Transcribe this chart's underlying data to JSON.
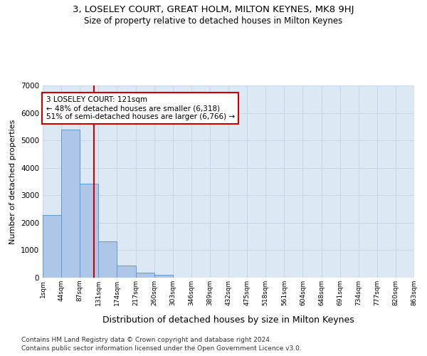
{
  "title1": "3, LOSELEY COURT, GREAT HOLM, MILTON KEYNES, MK8 9HJ",
  "title2": "Size of property relative to detached houses in Milton Keynes",
  "xlabel": "Distribution of detached houses by size in Milton Keynes",
  "ylabel": "Number of detached properties",
  "bin_labels": [
    "1sqm",
    "44sqm",
    "87sqm",
    "131sqm",
    "174sqm",
    "217sqm",
    "260sqm",
    "303sqm",
    "346sqm",
    "389sqm",
    "432sqm",
    "475sqm",
    "518sqm",
    "561sqm",
    "604sqm",
    "648sqm",
    "691sqm",
    "734sqm",
    "777sqm",
    "820sqm",
    "863sqm"
  ],
  "bar_values": [
    2280,
    5400,
    3420,
    1330,
    430,
    170,
    100,
    0,
    0,
    0,
    0,
    0,
    0,
    0,
    0,
    0,
    0,
    0,
    0,
    0
  ],
  "bar_color": "#aec6e8",
  "bar_edge_color": "#5b9bd5",
  "vline_color": "#cc0000",
  "annotation_title": "3 LOSELEY COURT: 121sqm",
  "annotation_line2": "← 48% of detached houses are smaller (6,318)",
  "annotation_line3": "51% of semi-detached houses are larger (6,766) →",
  "annotation_box_color": "#ffffff",
  "annotation_box_edge_color": "#cc0000",
  "ylim": [
    0,
    7000
  ],
  "yticks": [
    0,
    1000,
    2000,
    3000,
    4000,
    5000,
    6000,
    7000
  ],
  "grid_color": "#c8d8e8",
  "background_color": "#dce9f5",
  "footer1": "Contains HM Land Registry data © Crown copyright and database right 2024.",
  "footer2": "Contains public sector information licensed under the Open Government Licence v3.0.",
  "title1_fontsize": 9.5,
  "title2_fontsize": 8.5,
  "xlabel_fontsize": 9,
  "ylabel_fontsize": 8,
  "footer_fontsize": 6.5
}
